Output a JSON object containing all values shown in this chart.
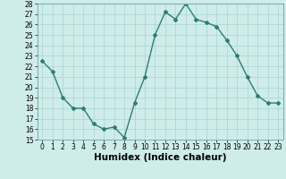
{
  "x": [
    0,
    1,
    2,
    3,
    4,
    5,
    6,
    7,
    8,
    9,
    10,
    11,
    12,
    13,
    14,
    15,
    16,
    17,
    18,
    19,
    20,
    21,
    22,
    23
  ],
  "y": [
    22.5,
    21.5,
    19.0,
    18.0,
    18.0,
    16.5,
    16.0,
    16.2,
    15.2,
    18.5,
    21.0,
    25.0,
    27.2,
    26.5,
    28.0,
    26.5,
    26.2,
    25.8,
    24.5,
    23.0,
    21.0,
    19.2,
    18.5,
    18.5
  ],
  "line_color": "#2e7d6e",
  "marker": "D",
  "marker_size": 2.0,
  "bg_color": "#ceecea",
  "grid_color": "#aed8d4",
  "xlabel": "Humidex (Indice chaleur)",
  "ylim": [
    15,
    28
  ],
  "xlim": [
    -0.5,
    23.5
  ],
  "yticks": [
    15,
    16,
    17,
    18,
    19,
    20,
    21,
    22,
    23,
    24,
    25,
    26,
    27,
    28
  ],
  "xticks": [
    0,
    1,
    2,
    3,
    4,
    5,
    6,
    7,
    8,
    9,
    10,
    11,
    12,
    13,
    14,
    15,
    16,
    17,
    18,
    19,
    20,
    21,
    22,
    23
  ],
  "tick_fontsize": 5.5,
  "xlabel_fontsize": 7.5,
  "linewidth": 1.0
}
